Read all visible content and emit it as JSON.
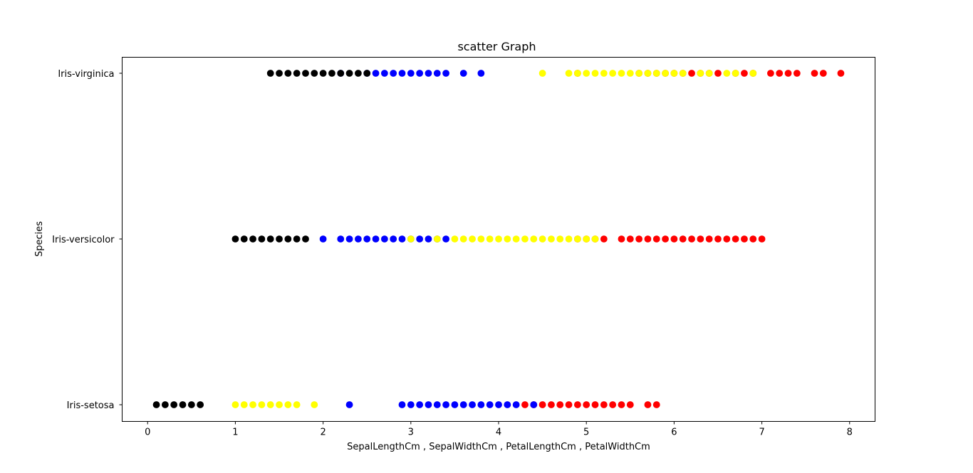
{
  "chart_data": {
    "type": "scatter",
    "title": "scatter Graph",
    "xlabel": "SepalLengthCm , SepalWidthCm , PetalLengthCm , PetalWidthCm",
    "ylabel": "Species",
    "categories": [
      "Iris-setosa",
      "Iris-versicolor",
      "Iris-virginica"
    ],
    "xlim": [
      -0.29,
      8.29
    ],
    "xticks": [
      0,
      1,
      2,
      3,
      4,
      5,
      6,
      7,
      8
    ],
    "grid": false,
    "legend": "none",
    "series": [
      {
        "color": "#ff0000",
        "points": {
          "Iris-setosa": [
            4.3,
            4.4,
            4.5,
            4.6,
            4.7,
            4.8,
            4.9,
            5.0,
            5.1,
            5.2,
            5.3,
            5.4,
            5.5,
            5.7,
            5.8
          ],
          "Iris-versicolor": [
            4.9,
            5.0,
            5.1,
            5.2,
            5.4,
            5.5,
            5.6,
            5.7,
            5.8,
            5.9,
            6.0,
            6.1,
            6.2,
            6.3,
            6.4,
            6.5,
            6.6,
            6.7,
            6.8,
            6.9,
            7.0
          ],
          "Iris-virginica": [
            4.9,
            5.6,
            5.7,
            5.8,
            5.9,
            6.0,
            6.1,
            6.2,
            6.3,
            6.4,
            6.5,
            6.7,
            6.8,
            6.9,
            7.1,
            7.2,
            7.3,
            7.4,
            7.6,
            7.7,
            7.9
          ]
        }
      },
      {
        "color": "#0000ff",
        "points": {
          "Iris-setosa": [
            2.3,
            2.9,
            3.0,
            3.1,
            3.2,
            3.3,
            3.4,
            3.5,
            3.6,
            3.7,
            3.8,
            3.9,
            4.0,
            4.1,
            4.2,
            4.4
          ],
          "Iris-versicolor": [
            2.0,
            2.2,
            2.3,
            2.4,
            2.5,
            2.6,
            2.7,
            2.8,
            2.9,
            3.0,
            3.1,
            3.2,
            3.3,
            3.4
          ],
          "Iris-virginica": [
            2.2,
            2.5,
            2.6,
            2.7,
            2.8,
            2.9,
            3.0,
            3.1,
            3.2,
            3.3,
            3.4,
            3.6,
            3.8
          ]
        }
      },
      {
        "color": "#ffff00",
        "points": {
          "Iris-setosa": [
            1.0,
            1.1,
            1.2,
            1.3,
            1.4,
            1.5,
            1.6,
            1.7,
            1.9
          ],
          "Iris-versicolor": [
            3.0,
            3.3,
            3.5,
            3.6,
            3.7,
            3.8,
            3.9,
            4.0,
            4.1,
            4.2,
            4.3,
            4.4,
            4.5,
            4.6,
            4.7,
            4.8,
            4.9,
            5.0,
            5.1
          ],
          "Iris-virginica": [
            4.5,
            4.8,
            4.9,
            5.0,
            5.1,
            5.2,
            5.3,
            5.4,
            5.5,
            5.6,
            5.7,
            5.8,
            5.9,
            6.0,
            6.1,
            6.3,
            6.4,
            6.6,
            6.7,
            6.9
          ]
        }
      },
      {
        "color": "#000000",
        "points": {
          "Iris-setosa": [
            0.1,
            0.2,
            0.3,
            0.4,
            0.5,
            0.6
          ],
          "Iris-versicolor": [
            1.0,
            1.1,
            1.2,
            1.3,
            1.4,
            1.5,
            1.6,
            1.7,
            1.8
          ],
          "Iris-virginica": [
            1.4,
            1.5,
            1.6,
            1.7,
            1.8,
            1.9,
            2.0,
            2.1,
            2.2,
            2.3,
            2.4,
            2.5
          ]
        }
      }
    ]
  }
}
